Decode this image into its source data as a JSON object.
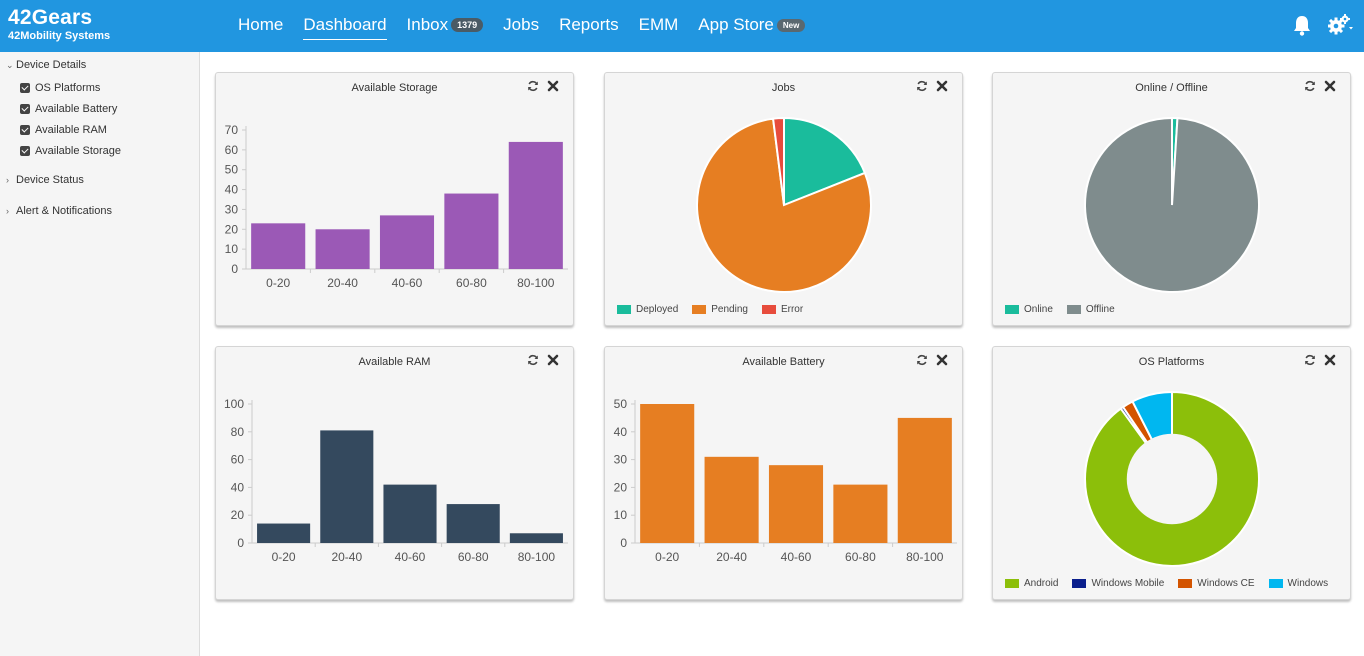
{
  "brand": {
    "name": "42Gears",
    "subtitle": "42Mobility Systems"
  },
  "nav": {
    "home": "Home",
    "dashboard": "Dashboard",
    "inbox": "Inbox",
    "inbox_count": "1379",
    "jobs": "Jobs",
    "reports": "Reports",
    "emm": "EMM",
    "appstore": "App Store",
    "appstore_badge": "New"
  },
  "sidebar": {
    "group_device_details": "Device Details",
    "items": [
      "OS Platforms",
      "Available Battery",
      "Available RAM",
      "Available Storage"
    ],
    "group_device_status": "Device Status",
    "group_alerts": "Alert & Notifications"
  },
  "colors": {
    "primary": "#2196e0",
    "purple": "#9b59b6",
    "navy": "#34495e",
    "orange": "#e67e22",
    "teal": "#1abc9c",
    "red": "#e74c3c",
    "gray": "#7f8c8d",
    "android": "#8cbf0a",
    "windows_mobile": "#0a1e8c",
    "windows_ce": "#d35400",
    "windows": "#00b7f0"
  },
  "widgets": {
    "storage": {
      "title": "Available Storage"
    },
    "jobs": {
      "title": "Jobs"
    },
    "online": {
      "title": "Online / Offline"
    },
    "ram": {
      "title": "Available RAM"
    },
    "battery": {
      "title": "Available Battery"
    },
    "os": {
      "title": "OS Platforms"
    }
  },
  "chart_data": [
    {
      "id": "storage",
      "type": "bar",
      "categories": [
        "0-20",
        "20-40",
        "40-60",
        "60-80",
        "80-100"
      ],
      "values": [
        23,
        20,
        27,
        38,
        64
      ],
      "ylim": [
        0,
        70
      ],
      "yticks": [
        0,
        10,
        20,
        30,
        40,
        50,
        60,
        70
      ],
      "color": "#9b59b6"
    },
    {
      "id": "jobs",
      "type": "pie",
      "labels": [
        "Deployed",
        "Pending",
        "Error"
      ],
      "values": [
        19,
        79,
        2
      ],
      "colors": [
        "#1abc9c",
        "#e67e22",
        "#e74c3c"
      ]
    },
    {
      "id": "online",
      "type": "pie",
      "labels": [
        "Online",
        "Offline"
      ],
      "values": [
        1,
        99
      ],
      "colors": [
        "#1abc9c",
        "#7f8c8d"
      ]
    },
    {
      "id": "ram",
      "type": "bar",
      "categories": [
        "0-20",
        "20-40",
        "40-60",
        "60-80",
        "80-100"
      ],
      "values": [
        14,
        81,
        42,
        28,
        7
      ],
      "ylim": [
        0,
        100
      ],
      "yticks": [
        0,
        20,
        40,
        60,
        80,
        100
      ],
      "color": "#34495e"
    },
    {
      "id": "battery",
      "type": "bar",
      "categories": [
        "0-20",
        "20-40",
        "40-60",
        "60-80",
        "80-100"
      ],
      "values": [
        50,
        31,
        28,
        21,
        45
      ],
      "ylim": [
        0,
        50
      ],
      "yticks": [
        0,
        10,
        20,
        30,
        40,
        50
      ],
      "color": "#e67e22"
    },
    {
      "id": "os",
      "type": "pie",
      "donut": true,
      "labels": [
        "Android",
        "Windows Mobile",
        "Windows CE",
        "Windows"
      ],
      "values": [
        90,
        0.5,
        2,
        7.5
      ],
      "colors": [
        "#8cbf0a",
        "#0a1e8c",
        "#d35400",
        "#00b7f0"
      ]
    }
  ]
}
